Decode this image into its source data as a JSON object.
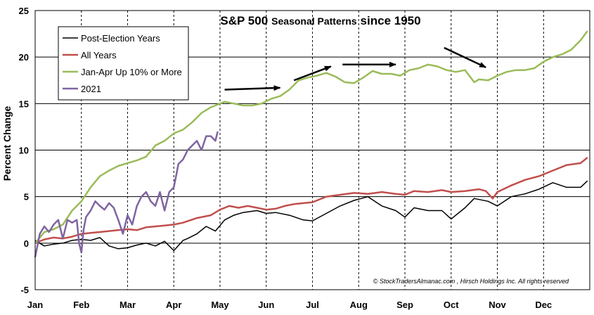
{
  "chart_data": {
    "type": "line",
    "title_main": "S&P 500",
    "title_mid": "Seasonal Patterns",
    "title_end": "since 1950",
    "ylabel": "Percent Change",
    "xlabel": "",
    "categories": [
      "Jan",
      "Feb",
      "Mar",
      "Apr",
      "May",
      "Jun",
      "Jul",
      "Aug",
      "Sep",
      "Oct",
      "Nov",
      "Dec"
    ],
    "y_ticks": [
      25,
      20,
      15,
      10,
      5,
      0,
      -5
    ],
    "ylim": [
      -5,
      25
    ],
    "xlim": [
      0,
      12
    ],
    "grid": "horizontal and dashed vertical at months",
    "legend_position": "top-left",
    "credit": "© StockTradersAlmanac.com , Hirsch Holdings Inc. All rights reserved",
    "series": [
      {
        "name": "Post-Election Years",
        "color": "#000000",
        "x": [
          0,
          0.2,
          0.4,
          0.6,
          0.8,
          1.0,
          1.2,
          1.4,
          1.6,
          1.8,
          2.0,
          2.2,
          2.4,
          2.6,
          2.8,
          3.0,
          3.2,
          3.3,
          3.5,
          3.7,
          3.9,
          4.1,
          4.3,
          4.5,
          4.8,
          5.0,
          5.2,
          5.5,
          5.8,
          6.0,
          6.3,
          6.6,
          6.9,
          7.2,
          7.5,
          7.8,
          8.0,
          8.2,
          8.5,
          8.8,
          9.0,
          9.3,
          9.5,
          9.8,
          10.0,
          10.3,
          10.6,
          10.9,
          11.2,
          11.5,
          11.8,
          11.95
        ],
        "values": [
          0.3,
          -0.3,
          -0.1,
          0.0,
          0.3,
          0.4,
          0.3,
          0.6,
          -0.3,
          -0.6,
          -0.5,
          -0.2,
          0.0,
          -0.3,
          0.2,
          -0.8,
          0.3,
          0.5,
          1.0,
          1.8,
          1.3,
          2.5,
          3.0,
          3.3,
          3.5,
          3.2,
          3.3,
          3.0,
          2.5,
          2.4,
          3.2,
          4.0,
          4.6,
          5.0,
          4.0,
          3.5,
          2.8,
          3.8,
          3.5,
          3.5,
          2.6,
          3.8,
          4.8,
          4.5,
          4.0,
          5.0,
          5.3,
          5.8,
          6.5,
          6.0,
          6.0,
          6.7
        ]
      },
      {
        "name": "All Years",
        "color": "#c0504d",
        "x": [
          0,
          0.2,
          0.4,
          0.6,
          0.8,
          1.0,
          1.2,
          1.4,
          1.6,
          1.8,
          2.0,
          2.2,
          2.4,
          2.6,
          2.8,
          3.0,
          3.2,
          3.5,
          3.8,
          4.0,
          4.2,
          4.4,
          4.6,
          4.8,
          5.0,
          5.2,
          5.4,
          5.6,
          6.0,
          6.3,
          6.6,
          6.9,
          7.2,
          7.5,
          7.8,
          8.0,
          8.2,
          8.5,
          8.8,
          9.0,
          9.3,
          9.6,
          9.75,
          9.9,
          10.0,
          10.3,
          10.6,
          10.9,
          11.2,
          11.5,
          11.8,
          11.95
        ],
        "values": [
          0.0,
          0.4,
          0.6,
          0.5,
          0.7,
          1.0,
          1.1,
          1.2,
          1.3,
          1.4,
          1.5,
          1.4,
          1.7,
          1.8,
          1.9,
          2.0,
          2.2,
          2.7,
          3.0,
          3.6,
          4.0,
          3.8,
          4.0,
          3.8,
          3.6,
          3.7,
          4.0,
          4.2,
          4.4,
          5.0,
          5.2,
          5.4,
          5.3,
          5.5,
          5.3,
          5.2,
          5.6,
          5.5,
          5.7,
          5.5,
          5.6,
          5.8,
          5.6,
          4.8,
          5.5,
          6.2,
          6.8,
          7.2,
          7.8,
          8.4,
          8.6,
          9.2
        ]
      },
      {
        "name": "Jan-Apr Up 10% or More",
        "color": "#9bbb59",
        "x": [
          0,
          0.1,
          0.2,
          0.4,
          0.6,
          0.8,
          1.0,
          1.2,
          1.4,
          1.6,
          1.8,
          2.0,
          2.2,
          2.4,
          2.6,
          2.8,
          3.0,
          3.2,
          3.4,
          3.6,
          3.8,
          4.0,
          4.1,
          4.3,
          4.5,
          4.7,
          4.9,
          5.1,
          5.3,
          5.5,
          5.7,
          5.9,
          6.1,
          6.3,
          6.5,
          6.7,
          6.9,
          7.1,
          7.3,
          7.5,
          7.7,
          7.9,
          8.1,
          8.3,
          8.5,
          8.7,
          8.9,
          9.1,
          9.3,
          9.5,
          9.6,
          9.8,
          10.0,
          10.2,
          10.4,
          10.6,
          10.8,
          11.0,
          11.2,
          11.4,
          11.6,
          11.8,
          11.95
        ],
        "values": [
          0.0,
          0.6,
          1.2,
          1.5,
          2.0,
          3.5,
          4.5,
          6.0,
          7.2,
          7.8,
          8.3,
          8.6,
          8.9,
          9.3,
          10.5,
          11.0,
          11.8,
          12.2,
          13.0,
          14.0,
          14.6,
          15.0,
          15.2,
          15.0,
          14.8,
          14.8,
          15.0,
          15.5,
          15.8,
          16.5,
          17.5,
          17.8,
          18.0,
          18.3,
          17.9,
          17.3,
          17.2,
          17.8,
          18.5,
          18.2,
          18.2,
          18.0,
          18.6,
          18.8,
          19.2,
          19.0,
          18.6,
          18.4,
          18.6,
          17.3,
          17.6,
          17.5,
          18.0,
          18.4,
          18.6,
          18.6,
          18.8,
          19.5,
          20.0,
          20.3,
          20.8,
          21.8,
          22.8
        ]
      },
      {
        "name": "2021",
        "color": "#8064a2",
        "x": [
          0,
          0.1,
          0.2,
          0.3,
          0.4,
          0.5,
          0.6,
          0.7,
          0.8,
          0.9,
          0.95,
          1.0,
          1.05,
          1.1,
          1.2,
          1.3,
          1.4,
          1.5,
          1.6,
          1.7,
          1.8,
          1.9,
          2.0,
          2.1,
          2.2,
          2.3,
          2.4,
          2.5,
          2.6,
          2.7,
          2.8,
          2.9,
          3.0,
          3.1,
          3.2,
          3.3,
          3.4,
          3.5,
          3.6,
          3.7,
          3.8,
          3.9,
          3.95
        ],
        "values": [
          -1.5,
          1.0,
          1.8,
          1.2,
          2.0,
          2.5,
          0.5,
          2.5,
          2.2,
          2.5,
          0.0,
          -1.0,
          1.5,
          2.8,
          3.5,
          4.5,
          4.0,
          3.6,
          4.3,
          3.8,
          2.5,
          1.0,
          3.0,
          2.0,
          4.0,
          5.0,
          5.5,
          4.5,
          4.0,
          5.5,
          3.5,
          5.5,
          6.0,
          8.5,
          9.0,
          10.0,
          10.5,
          11.0,
          10.0,
          11.5,
          11.5,
          11.0,
          12.0
        ]
      }
    ],
    "annotations": [
      {
        "type": "arrow",
        "x1": 4.1,
        "y1": 16.5,
        "x2": 5.3,
        "y2": 16.7
      },
      {
        "type": "arrow",
        "x1": 5.6,
        "y1": 17.5,
        "x2": 6.4,
        "y2": 19.0
      },
      {
        "type": "arrow",
        "x1": 6.65,
        "y1": 19.2,
        "x2": 7.8,
        "y2": 19.2
      },
      {
        "type": "arrow",
        "x1": 8.85,
        "y1": 21.0,
        "x2": 9.75,
        "y2": 18.9
      }
    ]
  }
}
